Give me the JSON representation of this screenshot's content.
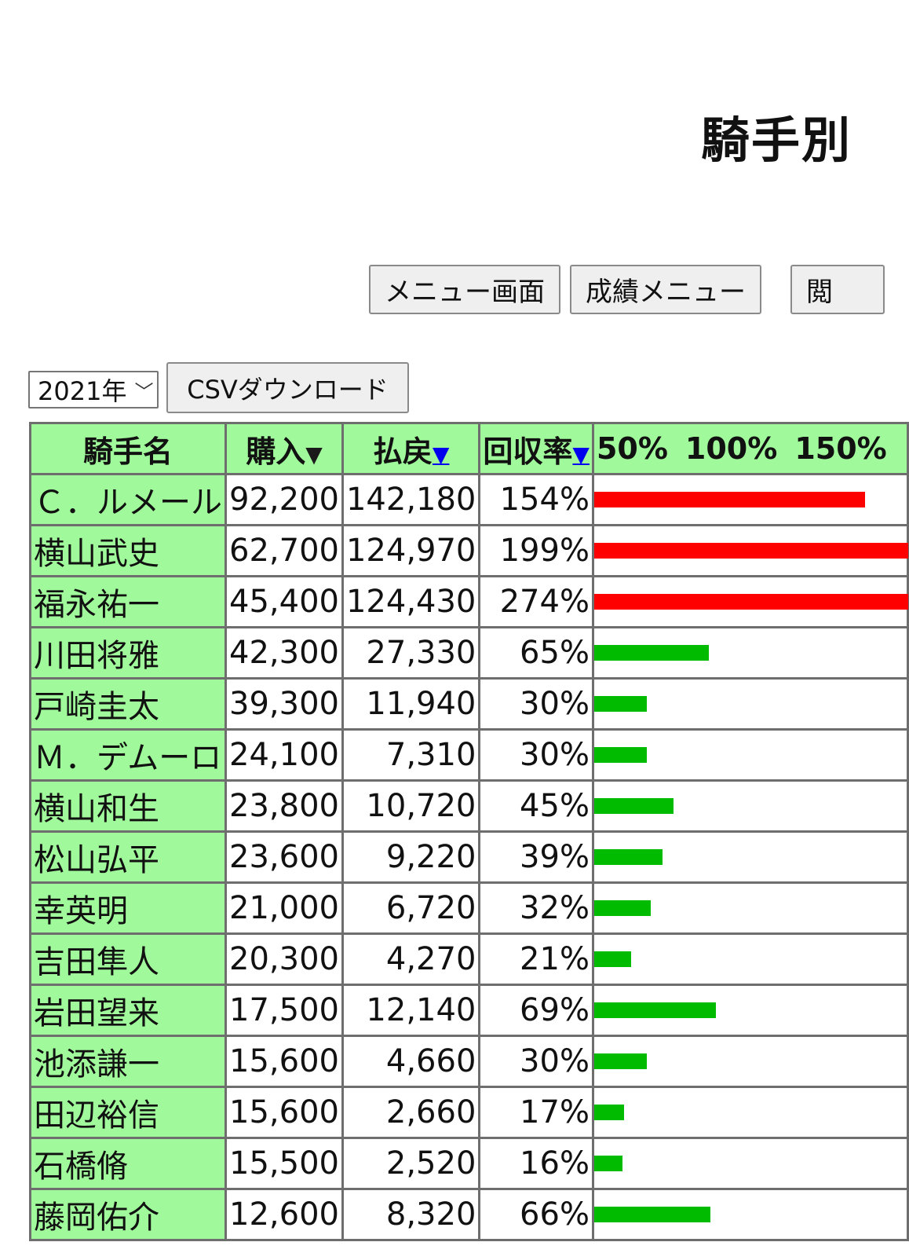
{
  "page": {
    "title": "騎手別"
  },
  "nav": {
    "menu_label": "メニュー画面",
    "result_label": "成績メニュー",
    "third_label": "閲"
  },
  "controls": {
    "year_selected": "2021年",
    "csv_label": "CSVダウンロード"
  },
  "table": {
    "headers": {
      "name": "騎手名",
      "purchase": "購入",
      "purchase_arrow": "▼",
      "payout": "払戻",
      "payout_arrow": "▼",
      "rate": "回収率",
      "rate_arrow": "▼",
      "scale": [
        "50%",
        "100%",
        "150%"
      ]
    },
    "colors": {
      "over_100": "#ff0000",
      "under_100": "#00bb00"
    },
    "rows": [
      {
        "name": "Ｃ．ルメール",
        "purchase": "92,200",
        "payout": "142,180",
        "rate": "154%",
        "rate_value": 154
      },
      {
        "name": "横山武史",
        "purchase": "62,700",
        "payout": "124,970",
        "rate": "199%",
        "rate_value": 199
      },
      {
        "name": "福永祐一",
        "purchase": "45,400",
        "payout": "124,430",
        "rate": "274%",
        "rate_value": 274
      },
      {
        "name": "川田将雅",
        "purchase": "42,300",
        "payout": "27,330",
        "rate": "65%",
        "rate_value": 65
      },
      {
        "name": "戸崎圭太",
        "purchase": "39,300",
        "payout": "11,940",
        "rate": "30%",
        "rate_value": 30
      },
      {
        "name": "Ｍ．デムーロ",
        "purchase": "24,100",
        "payout": "7,310",
        "rate": "30%",
        "rate_value": 30
      },
      {
        "name": "横山和生",
        "purchase": "23,800",
        "payout": "10,720",
        "rate": "45%",
        "rate_value": 45
      },
      {
        "name": "松山弘平",
        "purchase": "23,600",
        "payout": "9,220",
        "rate": "39%",
        "rate_value": 39
      },
      {
        "name": "幸英明",
        "purchase": "21,000",
        "payout": "6,720",
        "rate": "32%",
        "rate_value": 32
      },
      {
        "name": "吉田隼人",
        "purchase": "20,300",
        "payout": "4,270",
        "rate": "21%",
        "rate_value": 21
      },
      {
        "name": "岩田望来",
        "purchase": "17,500",
        "payout": "12,140",
        "rate": "69%",
        "rate_value": 69
      },
      {
        "name": "池添謙一",
        "purchase": "15,600",
        "payout": "4,660",
        "rate": "30%",
        "rate_value": 30
      },
      {
        "name": "田辺裕信",
        "purchase": "15,600",
        "payout": "2,660",
        "rate": "17%",
        "rate_value": 17
      },
      {
        "name": "石橋脩",
        "purchase": "15,500",
        "payout": "2,520",
        "rate": "16%",
        "rate_value": 16
      },
      {
        "name": "藤岡佑介",
        "purchase": "12,600",
        "payout": "8,320",
        "rate": "66%",
        "rate_value": 66
      }
    ]
  }
}
